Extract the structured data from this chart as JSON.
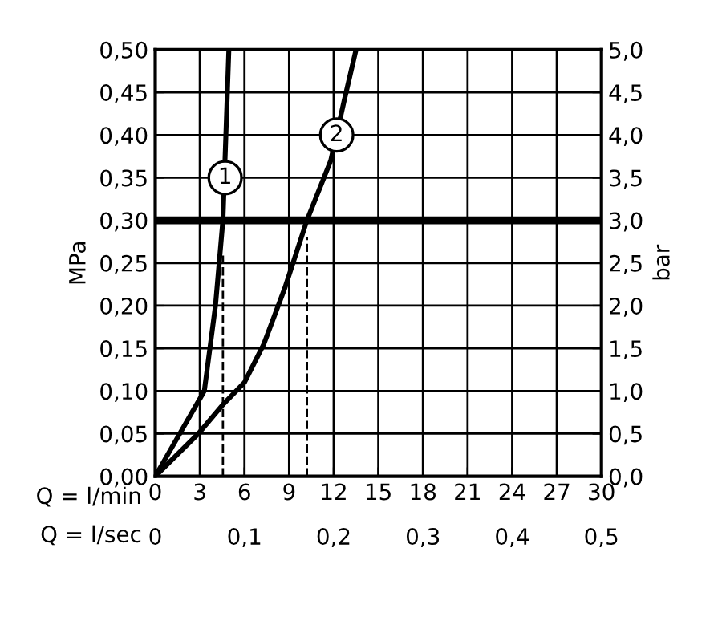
{
  "chart_data": {
    "type": "line",
    "xlabel": "Q = l/min",
    "ylabel": "MPa",
    "y2label": "bar",
    "x2label": "Q = l/sec",
    "xlim": [
      0,
      30
    ],
    "xticks": [
      0,
      3,
      6,
      9,
      12,
      15,
      18,
      21,
      24,
      27,
      30
    ],
    "x2lim": [
      0,
      0.5
    ],
    "x2ticks": [
      0,
      {
        "value": 0.1,
        "label": "0,1"
      },
      {
        "value": 0.2,
        "label": "0,2"
      },
      {
        "value": 0.3,
        "label": "0,3"
      },
      {
        "value": 0.4,
        "label": "0,4"
      },
      {
        "value": 0.5,
        "label": "0,5"
      }
    ],
    "ylim": [
      0,
      0.5
    ],
    "yticks": [
      {
        "value": 0,
        "label": "0,00"
      },
      {
        "value": 0.05,
        "label": "0,05"
      },
      {
        "value": 0.1,
        "label": "0,10"
      },
      {
        "value": 0.15,
        "label": "0,15"
      },
      {
        "value": 0.2,
        "label": "0,20"
      },
      {
        "value": 0.25,
        "label": "0,25"
      },
      {
        "value": 0.3,
        "label": "0,30"
      },
      {
        "value": 0.35,
        "label": "0,35"
      },
      {
        "value": 0.4,
        "label": "0,40"
      },
      {
        "value": 0.45,
        "label": "0,45"
      },
      {
        "value": 0.5,
        "label": "0,50"
      }
    ],
    "y2lim": [
      0,
      5
    ],
    "y2ticks": [
      {
        "value": 0,
        "label": "0,0"
      },
      {
        "value": 0.5,
        "label": "0,5"
      },
      {
        "value": 1,
        "label": "1,0"
      },
      {
        "value": 1.5,
        "label": "1,5"
      },
      {
        "value": 2,
        "label": "2,0"
      },
      {
        "value": 2.5,
        "label": "2,5"
      },
      {
        "value": 3,
        "label": "3,0"
      },
      {
        "value": 3.5,
        "label": "3,5"
      },
      {
        "value": 4,
        "label": "4,0"
      },
      {
        "value": 4.5,
        "label": "4,5"
      },
      {
        "value": 5,
        "label": "5,0"
      }
    ],
    "grid": true,
    "marker": "none",
    "series": [
      {
        "color": "#000000",
        "line_style": "solid",
        "x": [
          0,
          3.3,
          4.05,
          4.55,
          4.75,
          4.95
        ],
        "values": [
          0,
          0.1,
          0.2,
          0.3,
          0.4,
          0.5
        ]
      },
      {
        "color": "#000000",
        "line_style": "solid",
        "x": [
          0,
          2.9,
          4.6,
          6.0,
          7.3,
          8.7,
          10.2,
          11.8,
          12.7,
          13.5
        ],
        "values": [
          0,
          0.05,
          0.085,
          0.11,
          0.155,
          0.22,
          0.3,
          0.37,
          0.44,
          0.5
        ]
      },
      {
        "color": "#000000",
        "line_style": "dashed",
        "x": [
          4.55,
          4.55
        ],
        "values": [
          0,
          0.26
        ]
      },
      {
        "color": "#000000",
        "line_style": "dashed",
        "x": [
          10.2,
          10.2
        ],
        "values": [
          0,
          0.28
        ]
      }
    ],
    "ref_lines": [
      {
        "axis": "y",
        "value": 0.3,
        "color": "#000000"
      }
    ],
    "annotations": [
      {
        "text": "1",
        "x": 4.7,
        "y": 0.35
      },
      {
        "text": "2",
        "x": 12.2,
        "y": 0.4
      }
    ]
  }
}
